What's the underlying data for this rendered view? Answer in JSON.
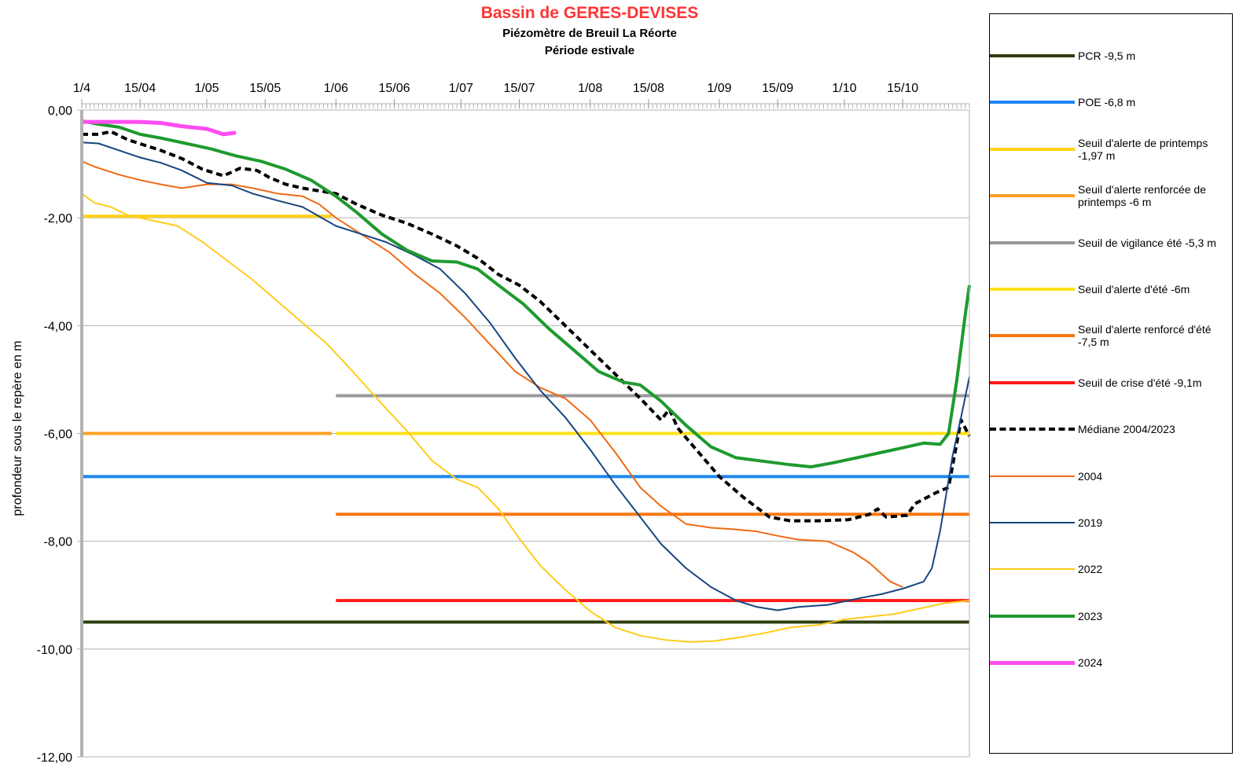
{
  "title": "Bassin de GERES-DEVISES",
  "subtitle1": "Piézomètre de Breuil La Réorte",
  "subtitle2": "Période estivale",
  "title_color": "#ff3333",
  "chart_data": {
    "type": "line",
    "xlabel": "",
    "ylabel": "profondeur sous le repère en m",
    "x_domain": [
      "04-01",
      "10-31"
    ],
    "ylim": [
      -12,
      0
    ],
    "x_ticks": [
      {
        "date": "04-01",
        "label": "1/4"
      },
      {
        "date": "04-15",
        "label": "15/04"
      },
      {
        "date": "05-01",
        "label": "1/05"
      },
      {
        "date": "05-15",
        "label": "15/05"
      },
      {
        "date": "06-01",
        "label": "1/06"
      },
      {
        "date": "06-15",
        "label": "15/06"
      },
      {
        "date": "07-01",
        "label": "1/07"
      },
      {
        "date": "07-15",
        "label": "15/07"
      },
      {
        "date": "08-01",
        "label": "1/08"
      },
      {
        "date": "08-15",
        "label": "15/08"
      },
      {
        "date": "09-01",
        "label": "1/09"
      },
      {
        "date": "09-15",
        "label": "15/09"
      },
      {
        "date": "10-01",
        "label": "1/10"
      },
      {
        "date": "10-15",
        "label": "15/10"
      }
    ],
    "y_ticks": [
      {
        "value": 0,
        "label": "0,00"
      },
      {
        "value": -2,
        "label": "-2,00"
      },
      {
        "value": -4,
        "label": "-4,00"
      },
      {
        "value": -6,
        "label": "-6,00"
      },
      {
        "value": -8,
        "label": "-8,00"
      },
      {
        "value": -10,
        "label": "-10,00"
      },
      {
        "value": -12,
        "label": "-12,00"
      }
    ],
    "grid": true,
    "legend_position": "right",
    "series": [
      {
        "name": "PCR -9,5 m",
        "kind": "threshold",
        "color": "#2f3f10",
        "width": 4,
        "points": [
          [
            "04-01",
            -9.5
          ],
          [
            "10-31",
            -9.5
          ]
        ]
      },
      {
        "name": "POE -6,8 m",
        "kind": "threshold",
        "color": "#1e88ef",
        "width": 4,
        "points": [
          [
            "04-01",
            -6.8
          ],
          [
            "10-31",
            -6.8
          ]
        ]
      },
      {
        "name": "Seuil d'alerte de printemps -1,97 m",
        "kind": "threshold",
        "color": "#ffd21a",
        "width": 4,
        "points": [
          [
            "04-01",
            -1.97
          ],
          [
            "05-31",
            -1.97
          ]
        ]
      },
      {
        "name": "Seuil d'alerte renforcée de printemps -6 m",
        "kind": "threshold",
        "color": "#ffa024",
        "width": 4,
        "points": [
          [
            "04-01",
            -6.0
          ],
          [
            "05-31",
            -6.0
          ]
        ]
      },
      {
        "name": "Seuil de vigilance été -5,3 m",
        "kind": "threshold",
        "color": "#999999",
        "width": 4,
        "points": [
          [
            "06-01",
            -5.3
          ],
          [
            "10-31",
            -5.3
          ]
        ]
      },
      {
        "name": "Seuil d'alerte d'été -6m",
        "kind": "threshold",
        "color": "#ffe11a",
        "width": 4,
        "points": [
          [
            "06-01",
            -6.0
          ],
          [
            "10-31",
            -6.0
          ]
        ]
      },
      {
        "name": "Seuil d'alerte renforcé d'été -7,5 m",
        "kind": "threshold",
        "color": "#f7780f",
        "width": 4,
        "points": [
          [
            "06-01",
            -7.5
          ],
          [
            "10-31",
            -7.5
          ]
        ]
      },
      {
        "name": "Seuil de crise d'été -9,1m",
        "kind": "threshold",
        "color": "#ff1a1a",
        "width": 4,
        "points": [
          [
            "06-01",
            -9.1
          ],
          [
            "10-31",
            -9.1
          ]
        ]
      },
      {
        "name": "Médiane 2004/2023",
        "kind": "dashed",
        "color": "#000000",
        "width": 4,
        "points": [
          [
            "04-01",
            -0.45
          ],
          [
            "04-05",
            -0.45
          ],
          [
            "04-08",
            -0.4
          ],
          [
            "04-12",
            -0.55
          ],
          [
            "04-16",
            -0.65
          ],
          [
            "04-20",
            -0.75
          ],
          [
            "04-25",
            -0.9
          ],
          [
            "04-30",
            -1.1
          ],
          [
            "05-05",
            -1.22
          ],
          [
            "05-07",
            -1.15
          ],
          [
            "05-09",
            -1.08
          ],
          [
            "05-13",
            -1.12
          ],
          [
            "05-16",
            -1.25
          ],
          [
            "05-20",
            -1.38
          ],
          [
            "05-24",
            -1.45
          ],
          [
            "05-28",
            -1.5
          ],
          [
            "06-01",
            -1.55
          ],
          [
            "06-06",
            -1.75
          ],
          [
            "06-12",
            -1.95
          ],
          [
            "06-18",
            -2.1
          ],
          [
            "06-24",
            -2.3
          ],
          [
            "06-30",
            -2.52
          ],
          [
            "07-05",
            -2.75
          ],
          [
            "07-10",
            -3.05
          ],
          [
            "07-15",
            -3.25
          ],
          [
            "07-20",
            -3.55
          ],
          [
            "07-26",
            -4.0
          ],
          [
            "08-01",
            -4.45
          ],
          [
            "08-07",
            -4.9
          ],
          [
            "08-13",
            -5.35
          ],
          [
            "08-18",
            -5.75
          ],
          [
            "08-20",
            -5.55
          ],
          [
            "08-22",
            -5.9
          ],
          [
            "08-27",
            -6.35
          ],
          [
            "09-01",
            -6.8
          ],
          [
            "09-07",
            -7.2
          ],
          [
            "09-13",
            -7.55
          ],
          [
            "09-18",
            -7.62
          ],
          [
            "09-25",
            -7.62
          ],
          [
            "10-02",
            -7.6
          ],
          [
            "10-07",
            -7.5
          ],
          [
            "10-09",
            -7.4
          ],
          [
            "10-11",
            -7.55
          ],
          [
            "10-16",
            -7.52
          ],
          [
            "10-18",
            -7.3
          ],
          [
            "10-23",
            -7.1
          ],
          [
            "10-26",
            -7.0
          ],
          [
            "10-29",
            -5.75
          ],
          [
            "10-31",
            -6.05
          ]
        ]
      },
      {
        "name": "2004",
        "kind": "year",
        "color": "#f06a14",
        "width": 2,
        "points": [
          [
            "04-01",
            -0.95
          ],
          [
            "04-04",
            -1.05
          ],
          [
            "04-10",
            -1.2
          ],
          [
            "04-15",
            -1.3
          ],
          [
            "04-20",
            -1.38
          ],
          [
            "04-25",
            -1.45
          ],
          [
            "05-01",
            -1.38
          ],
          [
            "05-07",
            -1.38
          ],
          [
            "05-12",
            -1.45
          ],
          [
            "05-18",
            -1.55
          ],
          [
            "05-24",
            -1.6
          ],
          [
            "05-28",
            -1.75
          ],
          [
            "06-01",
            -2.0
          ],
          [
            "06-07",
            -2.3
          ],
          [
            "06-14",
            -2.65
          ],
          [
            "06-20",
            -3.05
          ],
          [
            "06-26",
            -3.4
          ],
          [
            "07-02",
            -3.85
          ],
          [
            "07-08",
            -4.35
          ],
          [
            "07-14",
            -4.85
          ],
          [
            "07-20",
            -5.15
          ],
          [
            "07-26",
            -5.35
          ],
          [
            "08-01",
            -5.75
          ],
          [
            "08-07",
            -6.35
          ],
          [
            "08-13",
            -7.0
          ],
          [
            "08-18",
            -7.35
          ],
          [
            "08-24",
            -7.68
          ],
          [
            "08-30",
            -7.75
          ],
          [
            "09-05",
            -7.78
          ],
          [
            "09-10",
            -7.82
          ],
          [
            "09-15",
            -7.9
          ],
          [
            "09-20",
            -7.97
          ],
          [
            "09-27",
            -8.0
          ],
          [
            "10-03",
            -8.2
          ],
          [
            "10-07",
            -8.4
          ],
          [
            "10-12",
            -8.75
          ],
          [
            "10-15",
            -8.85
          ]
        ]
      },
      {
        "name": "2019",
        "kind": "year",
        "color": "#17457f",
        "width": 2,
        "points": [
          [
            "04-01",
            -0.6
          ],
          [
            "04-05",
            -0.62
          ],
          [
            "04-10",
            -0.75
          ],
          [
            "04-15",
            -0.88
          ],
          [
            "04-20",
            -0.98
          ],
          [
            "04-25",
            -1.12
          ],
          [
            "05-01",
            -1.35
          ],
          [
            "05-07",
            -1.4
          ],
          [
            "05-12",
            -1.55
          ],
          [
            "05-18",
            -1.68
          ],
          [
            "05-24",
            -1.8
          ],
          [
            "06-01",
            -2.15
          ],
          [
            "06-07",
            -2.3
          ],
          [
            "06-13",
            -2.45
          ],
          [
            "06-20",
            -2.7
          ],
          [
            "06-26",
            -2.95
          ],
          [
            "07-02",
            -3.4
          ],
          [
            "07-08",
            -3.95
          ],
          [
            "07-14",
            -4.6
          ],
          [
            "07-20",
            -5.2
          ],
          [
            "07-26",
            -5.7
          ],
          [
            "08-01",
            -6.3
          ],
          [
            "08-07",
            -6.95
          ],
          [
            "08-13",
            -7.55
          ],
          [
            "08-18",
            -8.05
          ],
          [
            "08-24",
            -8.5
          ],
          [
            "08-30",
            -8.85
          ],
          [
            "09-05",
            -9.1
          ],
          [
            "09-10",
            -9.22
          ],
          [
            "09-15",
            -9.28
          ],
          [
            "09-20",
            -9.22
          ],
          [
            "09-27",
            -9.18
          ],
          [
            "10-05",
            -9.05
          ],
          [
            "10-10",
            -8.98
          ],
          [
            "10-15",
            -8.88
          ],
          [
            "10-20",
            -8.75
          ],
          [
            "10-22",
            -8.5
          ],
          [
            "10-24",
            -7.8
          ],
          [
            "10-27",
            -6.4
          ],
          [
            "10-29",
            -5.7
          ],
          [
            "10-31",
            -4.95
          ]
        ]
      },
      {
        "name": "2022",
        "kind": "year",
        "color": "#ffcc1a",
        "width": 2,
        "points": [
          [
            "04-01",
            -1.55
          ],
          [
            "04-04",
            -1.72
          ],
          [
            "04-08",
            -1.8
          ],
          [
            "04-12",
            -1.95
          ],
          [
            "04-18",
            -2.05
          ],
          [
            "04-24",
            -2.15
          ],
          [
            "04-30",
            -2.45
          ],
          [
            "05-06",
            -2.8
          ],
          [
            "05-12",
            -3.15
          ],
          [
            "05-18",
            -3.55
          ],
          [
            "05-24",
            -3.95
          ],
          [
            "05-30",
            -4.35
          ],
          [
            "06-05",
            -4.85
          ],
          [
            "06-12",
            -5.45
          ],
          [
            "06-18",
            -5.95
          ],
          [
            "06-24",
            -6.5
          ],
          [
            "06-30",
            -6.85
          ],
          [
            "07-05",
            -7.0
          ],
          [
            "07-10",
            -7.4
          ],
          [
            "07-15",
            -7.95
          ],
          [
            "07-20",
            -8.45
          ],
          [
            "07-26",
            -8.9
          ],
          [
            "08-01",
            -9.3
          ],
          [
            "08-07",
            -9.6
          ],
          [
            "08-13",
            -9.75
          ],
          [
            "08-19",
            -9.83
          ],
          [
            "08-25",
            -9.87
          ],
          [
            "08-31",
            -9.85
          ],
          [
            "09-06",
            -9.78
          ],
          [
            "09-12",
            -9.7
          ],
          [
            "09-18",
            -9.6
          ],
          [
            "09-25",
            -9.55
          ],
          [
            "10-01",
            -9.45
          ],
          [
            "10-07",
            -9.4
          ],
          [
            "10-13",
            -9.35
          ],
          [
            "10-19",
            -9.25
          ],
          [
            "10-25",
            -9.15
          ],
          [
            "10-31",
            -9.1
          ]
        ]
      },
      {
        "name": "2023",
        "kind": "year",
        "color": "#1e9a2e",
        "width": 4,
        "points": [
          [
            "04-01",
            -0.2
          ],
          [
            "04-04",
            -0.25
          ],
          [
            "04-10",
            -0.32
          ],
          [
            "04-15",
            -0.45
          ],
          [
            "04-20",
            -0.52
          ],
          [
            "04-26",
            -0.62
          ],
          [
            "05-02",
            -0.72
          ],
          [
            "05-08",
            -0.85
          ],
          [
            "05-14",
            -0.95
          ],
          [
            "05-20",
            -1.1
          ],
          [
            "05-26",
            -1.3
          ],
          [
            "06-01",
            -1.6
          ],
          [
            "06-06",
            -1.9
          ],
          [
            "06-12",
            -2.3
          ],
          [
            "06-18",
            -2.6
          ],
          [
            "06-24",
            -2.8
          ],
          [
            "06-30",
            -2.82
          ],
          [
            "07-05",
            -2.95
          ],
          [
            "07-10",
            -3.25
          ],
          [
            "07-16",
            -3.6
          ],
          [
            "07-22",
            -4.05
          ],
          [
            "07-28",
            -4.45
          ],
          [
            "08-03",
            -4.85
          ],
          [
            "08-09",
            -5.05
          ],
          [
            "08-13",
            -5.1
          ],
          [
            "08-18",
            -5.4
          ],
          [
            "08-24",
            -5.85
          ],
          [
            "08-30",
            -6.25
          ],
          [
            "09-05",
            -6.45
          ],
          [
            "09-12",
            -6.52
          ],
          [
            "09-18",
            -6.58
          ],
          [
            "09-23",
            -6.62
          ],
          [
            "09-28",
            -6.55
          ],
          [
            "10-04",
            -6.45
          ],
          [
            "10-10",
            -6.35
          ],
          [
            "10-16",
            -6.25
          ],
          [
            "10-20",
            -6.18
          ],
          [
            "10-24",
            -6.2
          ],
          [
            "10-26",
            -6.0
          ],
          [
            "10-28",
            -5.0
          ],
          [
            "10-30",
            -3.8
          ],
          [
            "10-31",
            -3.25
          ]
        ]
      },
      {
        "name": "2024",
        "kind": "year",
        "color": "#ff4df2",
        "width": 5,
        "points": [
          [
            "04-01",
            -0.22
          ],
          [
            "04-08",
            -0.22
          ],
          [
            "04-15",
            -0.22
          ],
          [
            "04-20",
            -0.24
          ],
          [
            "04-25",
            -0.3
          ],
          [
            "05-01",
            -0.35
          ],
          [
            "05-05",
            -0.45
          ],
          [
            "05-08",
            -0.42
          ]
        ]
      }
    ]
  }
}
